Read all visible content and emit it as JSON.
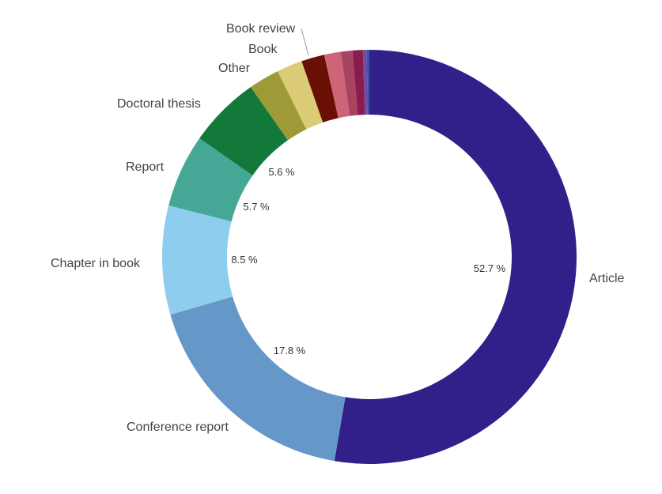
{
  "chart_data": {
    "type": "pie",
    "variant": "donut",
    "title": "",
    "legend": "none",
    "slices": [
      {
        "label": "Article",
        "value": 52.7,
        "value_label": "52.7 %",
        "color": "#32208a",
        "show_label": true
      },
      {
        "label": "Conference report",
        "value": 17.8,
        "value_label": "17.8 %",
        "color": "#6597c9",
        "show_label": true
      },
      {
        "label": "Chapter in book",
        "value": 8.5,
        "value_label": "8.5 %",
        "color": "#8ecdee",
        "show_label": true
      },
      {
        "label": "Report",
        "value": 5.7,
        "value_label": "5.7 %",
        "color": "#45a896",
        "show_label": true
      },
      {
        "label": "Doctoral thesis",
        "value": 5.6,
        "value_label": "5.6 %",
        "color": "#13793a",
        "show_label": true
      },
      {
        "label": "Other",
        "value": 2.4,
        "value_label": "",
        "color": "#9e9a37",
        "show_label": true
      },
      {
        "label": "Book",
        "value": 2.0,
        "value_label": "",
        "color": "#dccb77",
        "show_label": true
      },
      {
        "label": "Book review",
        "value": 1.8,
        "value_label": "",
        "color": "#6a0f03",
        "show_label": true
      },
      {
        "label": "",
        "value": 1.3,
        "value_label": "",
        "color": "#cd6477",
        "show_label": false
      },
      {
        "label": "",
        "value": 0.9,
        "value_label": "",
        "color": "#a84462",
        "show_label": false
      },
      {
        "label": "",
        "value": 0.8,
        "value_label": "",
        "color": "#8a1b4f",
        "show_label": false
      },
      {
        "label": "",
        "value": 0.3,
        "value_label": "",
        "color": "#6a4ea3",
        "show_label": false
      },
      {
        "label": "",
        "value": 0.2,
        "value_label": "",
        "color": "#3c55a3",
        "show_label": false
      }
    ]
  }
}
